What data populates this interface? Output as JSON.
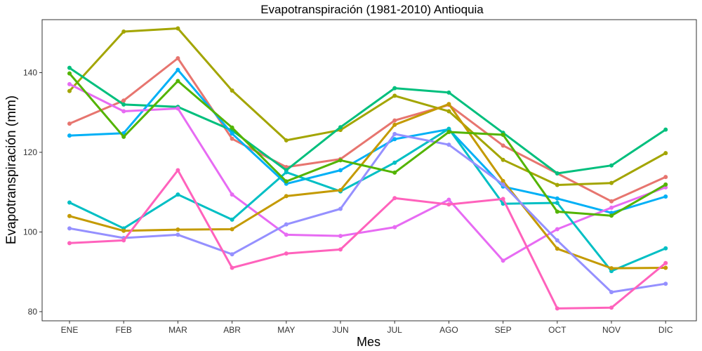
{
  "chart_data": {
    "type": "line",
    "title": "Evapotranspiración (1981-2010)  Antioquia",
    "xlabel": "Mes",
    "ylabel": "Evapotranspiración (mm)",
    "ylim": [
      77.7,
      153.3
    ],
    "yticks": [
      80,
      100,
      120,
      140
    ],
    "grid": false,
    "legend": "none",
    "categories": [
      "ENE",
      "FEB",
      "MAR",
      "ABR",
      "MAY",
      "JUN",
      "JUL",
      "AGO",
      "SEP",
      "OCT",
      "NOV",
      "DIC"
    ],
    "series": [
      {
        "color": "#e7756f",
        "values": [
          127.2,
          133.0,
          143.6,
          123.4,
          116.3,
          118.3,
          128.0,
          131.9,
          121.7,
          114.7,
          107.7,
          113.8
        ]
      },
      {
        "color": "#a3a500",
        "values": [
          135.4,
          150.3,
          151.1,
          135.5,
          123.0,
          125.6,
          134.2,
          130.3,
          118.1,
          111.8,
          112.3,
          119.8
        ]
      },
      {
        "color": "#00bf7d",
        "values": [
          141.2,
          132.0,
          131.4,
          125.5,
          115.5,
          126.3,
          136.1,
          135.0,
          124.9,
          114.7,
          116.7,
          125.7
        ]
      },
      {
        "color": "#00b0f6",
        "values": [
          124.2,
          124.8,
          140.7,
          124.7,
          112.1,
          115.5,
          123.3,
          125.8,
          111.4,
          108.4,
          104.8,
          108.9
        ]
      },
      {
        "color": "#e76bf3",
        "values": [
          137.1,
          130.3,
          131.0,
          109.4,
          99.3,
          99.0,
          101.2,
          108.1,
          92.8,
          100.7,
          106.1,
          111.2
        ]
      },
      {
        "color": "#00bfc4",
        "values": [
          107.4,
          100.9,
          109.4,
          103.1,
          115.0,
          110.2,
          117.4,
          125.9,
          107.1,
          107.3,
          90.2,
          95.9
        ]
      },
      {
        "color": "#c49a00",
        "values": [
          104.0,
          100.3,
          100.6,
          100.7,
          109.0,
          110.5,
          126.9,
          132.1,
          112.8,
          95.8,
          90.9,
          91.0
        ]
      },
      {
        "color": "#9590ff",
        "values": [
          100.9,
          98.5,
          99.3,
          94.4,
          101.9,
          105.8,
          124.6,
          121.9,
          111.9,
          97.9,
          84.9,
          87.0
        ]
      },
      {
        "color": "#ff62bc",
        "values": [
          97.2,
          97.9,
          115.5,
          91.0,
          94.6,
          95.6,
          108.5,
          106.9,
          108.3,
          80.8,
          81.0,
          92.2
        ]
      },
      {
        "color": "#53b400",
        "values": [
          139.8,
          123.9,
          137.9,
          126.2,
          112.7,
          118.0,
          114.9,
          125.1,
          124.4,
          105.1,
          104.1,
          111.9
        ]
      }
    ]
  }
}
